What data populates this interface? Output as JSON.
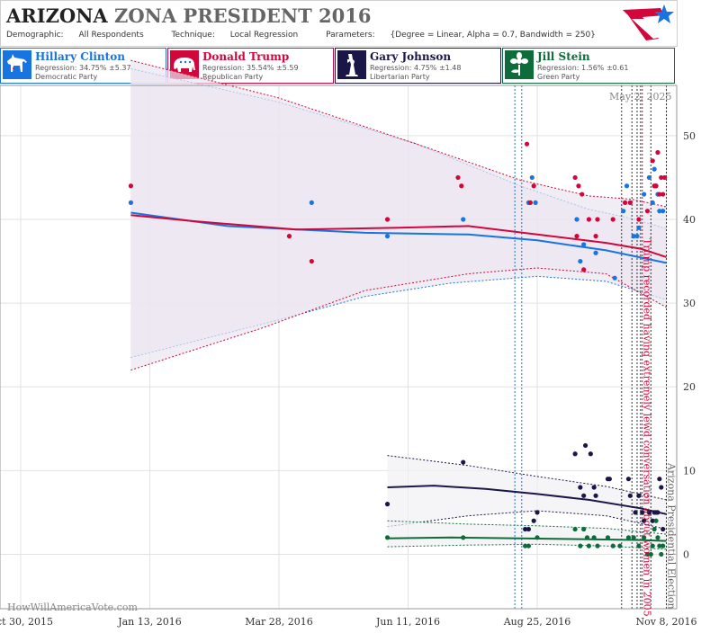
{
  "header": {
    "title_main": "ARIZONA",
    "title_sub": "ZONA PRESIDENT 2016",
    "demographic_label": "Demographic:",
    "demographic": "All Respondents",
    "technique_label": "Technique:",
    "technique": "Local Regression",
    "parameters_label": "Parameters:",
    "parameters": "{Degree = Linear, Alpha = 0.7, Bandwidth = 250}"
  },
  "candidates": [
    {
      "name": "Hillary Clinton",
      "regression": "Regression: 34.75% ±5.37",
      "party": "Democratic Party",
      "color": "#1874e0",
      "icon": "donkey-icon"
    },
    {
      "name": "Donald Trump",
      "regression": "Regression: 35.54% ±5.59",
      "party": "Republican Party",
      "color": "#d2063a",
      "icon": "elephant-icon"
    },
    {
      "name": "Gary Johnson",
      "regression": "Regression: 4.75% ±1.48",
      "party": "Libertarian Party",
      "color": "#1a1748",
      "icon": "liberty-icon"
    },
    {
      "name": "Jill Stein",
      "regression": "Regression: 1.56% ±0.61",
      "party": "Green Party",
      "color": "#0e6b3a",
      "icon": "flower-icon"
    }
  ],
  "watermark": "HowWillAmericaVote.com",
  "date_stamp": "May 2, 2025",
  "chart_data": {
    "type": "scatter",
    "x_ticks": [
      "Oct 30, 2015",
      "Jan 13, 2016",
      "Mar 28, 2016",
      "Jun 11, 2016",
      "Aug 25, 2016",
      "Nov 8, 2016"
    ],
    "y_ticks": [
      0,
      10,
      20,
      30,
      40,
      50
    ],
    "xlim_days": [
      -12,
      381
    ],
    "ylim": [
      -6.5,
      56
    ],
    "grid": true,
    "vertical_markers": {
      "blue": [
        287,
        291
      ],
      "black": [
        349,
        355,
        358,
        360,
        366,
        375
      ],
      "red": [
        361
      ]
    },
    "annotations": [
      {
        "text": "Trump recorded having extremely lewd conversation about women in 2005",
        "day": 361,
        "color": "#d2063a"
      },
      {
        "text": "Arizona Presidential Election",
        "day": 375,
        "color": "#666666"
      }
    ],
    "series": [
      {
        "name": "Hillary Clinton",
        "color": "#1874e0",
        "points": [
          [
            64,
            42
          ],
          [
            169,
            42
          ],
          [
            213,
            38
          ],
          [
            257,
            40
          ],
          [
            295,
            42
          ],
          [
            297,
            45
          ],
          [
            299,
            42
          ],
          [
            323,
            40
          ],
          [
            325,
            35
          ],
          [
            327,
            37
          ],
          [
            334,
            36
          ],
          [
            345,
            33
          ],
          [
            350,
            41
          ],
          [
            352,
            44
          ],
          [
            356,
            38
          ],
          [
            358,
            38
          ],
          [
            359,
            39
          ],
          [
            362,
            43
          ],
          [
            365,
            45
          ],
          [
            367,
            42
          ],
          [
            368,
            46
          ],
          [
            369,
            44
          ],
          [
            370,
            43
          ],
          [
            371,
            41
          ],
          [
            373,
            41
          ]
        ],
        "trend": [
          [
            64,
            40.8
          ],
          [
            120,
            39.2
          ],
          [
            200,
            38.4
          ],
          [
            260,
            38.2
          ],
          [
            300,
            37.5
          ],
          [
            340,
            36.3
          ],
          [
            375,
            34.8
          ]
        ],
        "ci_upper": [
          [
            64,
            58
          ],
          [
            150,
            54
          ],
          [
            230,
            49
          ],
          [
            290,
            44
          ],
          [
            330,
            41.2
          ],
          [
            355,
            40.1
          ],
          [
            375,
            38.9
          ]
        ],
        "ci_lower": [
          [
            64,
            23.5
          ],
          [
            150,
            28
          ],
          [
            200,
            30.8
          ],
          [
            250,
            32.4
          ],
          [
            300,
            33.2
          ],
          [
            340,
            32.6
          ],
          [
            375,
            30.4
          ]
        ]
      },
      {
        "name": "Donald Trump",
        "color": "#d2063a",
        "points": [
          [
            64,
            44
          ],
          [
            156,
            38
          ],
          [
            169,
            35
          ],
          [
            213,
            40
          ],
          [
            254,
            45
          ],
          [
            256,
            44
          ],
          [
            294,
            49
          ],
          [
            296,
            42
          ],
          [
            298,
            44
          ],
          [
            322,
            45
          ],
          [
            323,
            38
          ],
          [
            324,
            44
          ],
          [
            326,
            43
          ],
          [
            327,
            34
          ],
          [
            330,
            40
          ],
          [
            334,
            38
          ],
          [
            335,
            40
          ],
          [
            344,
            40
          ],
          [
            351,
            42
          ],
          [
            354,
            42
          ],
          [
            359,
            40
          ],
          [
            364,
            41
          ],
          [
            367,
            47
          ],
          [
            368,
            44
          ],
          [
            369,
            44
          ],
          [
            370,
            48
          ],
          [
            371,
            43
          ],
          [
            372,
            45
          ],
          [
            373,
            43
          ],
          [
            374,
            45
          ]
        ],
        "trend": [
          [
            64,
            40.5
          ],
          [
            100,
            39.8
          ],
          [
            160,
            38.8
          ],
          [
            220,
            39
          ],
          [
            260,
            39.2
          ],
          [
            300,
            38.2
          ],
          [
            340,
            37.2
          ],
          [
            360,
            36.5
          ],
          [
            375,
            35.5
          ]
        ],
        "ci_upper": [
          [
            64,
            59
          ],
          [
            150,
            54.5
          ],
          [
            230,
            49
          ],
          [
            290,
            44.7
          ],
          [
            330,
            42.8
          ],
          [
            355,
            42.4
          ],
          [
            375,
            41.5
          ]
        ],
        "ci_lower": [
          [
            64,
            22
          ],
          [
            140,
            27
          ],
          [
            200,
            31.5
          ],
          [
            260,
            33.5
          ],
          [
            300,
            34.2
          ],
          [
            340,
            33.5
          ],
          [
            375,
            29.5
          ]
        ]
      },
      {
        "name": "Gary Johnson",
        "color": "#1a1748",
        "points": [
          [
            213,
            6
          ],
          [
            257,
            11
          ],
          [
            293,
            3
          ],
          [
            295,
            3
          ],
          [
            298,
            4
          ],
          [
            300,
            5
          ],
          [
            322,
            12
          ],
          [
            325,
            8
          ],
          [
            327,
            7
          ],
          [
            328,
            13
          ],
          [
            331,
            12
          ],
          [
            333,
            8
          ],
          [
            334,
            7
          ],
          [
            341,
            9
          ],
          [
            342,
            9
          ],
          [
            353,
            9
          ],
          [
            354,
            7
          ],
          [
            357,
            5
          ],
          [
            359,
            7
          ],
          [
            361,
            5
          ],
          [
            362,
            4
          ],
          [
            365,
            5
          ],
          [
            367,
            4
          ],
          [
            368,
            5
          ],
          [
            369,
            5
          ],
          [
            370,
            5
          ],
          [
            371,
            9
          ],
          [
            372,
            8
          ],
          [
            373,
            3
          ]
        ],
        "trend": [
          [
            213,
            8
          ],
          [
            240,
            8.2
          ],
          [
            270,
            7.8
          ],
          [
            300,
            7.2
          ],
          [
            330,
            6.5
          ],
          [
            360,
            5.5
          ],
          [
            375,
            4.8
          ]
        ],
        "ci_upper": [
          [
            213,
            11.8
          ],
          [
            260,
            10.6
          ],
          [
            300,
            9.3
          ],
          [
            340,
            8.1
          ],
          [
            375,
            6.5
          ]
        ],
        "ci_lower": [
          [
            213,
            3.3
          ],
          [
            260,
            4.6
          ],
          [
            300,
            5.2
          ],
          [
            340,
            4.6
          ],
          [
            375,
            3
          ]
        ]
      },
      {
        "name": "Jill Stein",
        "color": "#0e6b3a",
        "points": [
          [
            213,
            2
          ],
          [
            257,
            2
          ],
          [
            293,
            1
          ],
          [
            295,
            1
          ],
          [
            300,
            2
          ],
          [
            322,
            3
          ],
          [
            325,
            1
          ],
          [
            327,
            3
          ],
          [
            329,
            2
          ],
          [
            330,
            1
          ],
          [
            333,
            2
          ],
          [
            335,
            1
          ],
          [
            341,
            2
          ],
          [
            344,
            1
          ],
          [
            348,
            1
          ],
          [
            353,
            2
          ],
          [
            356,
            2
          ],
          [
            359,
            1
          ],
          [
            362,
            2
          ],
          [
            364,
            0
          ],
          [
            366,
            0
          ],
          [
            367,
            1
          ],
          [
            368,
            3
          ],
          [
            369,
            4
          ],
          [
            370,
            2
          ],
          [
            371,
            1
          ],
          [
            372,
            0
          ],
          [
            373,
            1
          ]
        ],
        "trend": [
          [
            213,
            1.9
          ],
          [
            250,
            2
          ],
          [
            290,
            1.9
          ],
          [
            330,
            1.8
          ],
          [
            360,
            1.7
          ],
          [
            375,
            1.6
          ]
        ],
        "ci_upper": [
          [
            213,
            4
          ],
          [
            260,
            3.6
          ],
          [
            300,
            3.4
          ],
          [
            340,
            3.1
          ],
          [
            375,
            2.4
          ]
        ],
        "ci_lower": [
          [
            213,
            0.9
          ],
          [
            260,
            1.1
          ],
          [
            300,
            1.2
          ],
          [
            340,
            1.0
          ],
          [
            375,
            0.6
          ]
        ]
      }
    ]
  }
}
